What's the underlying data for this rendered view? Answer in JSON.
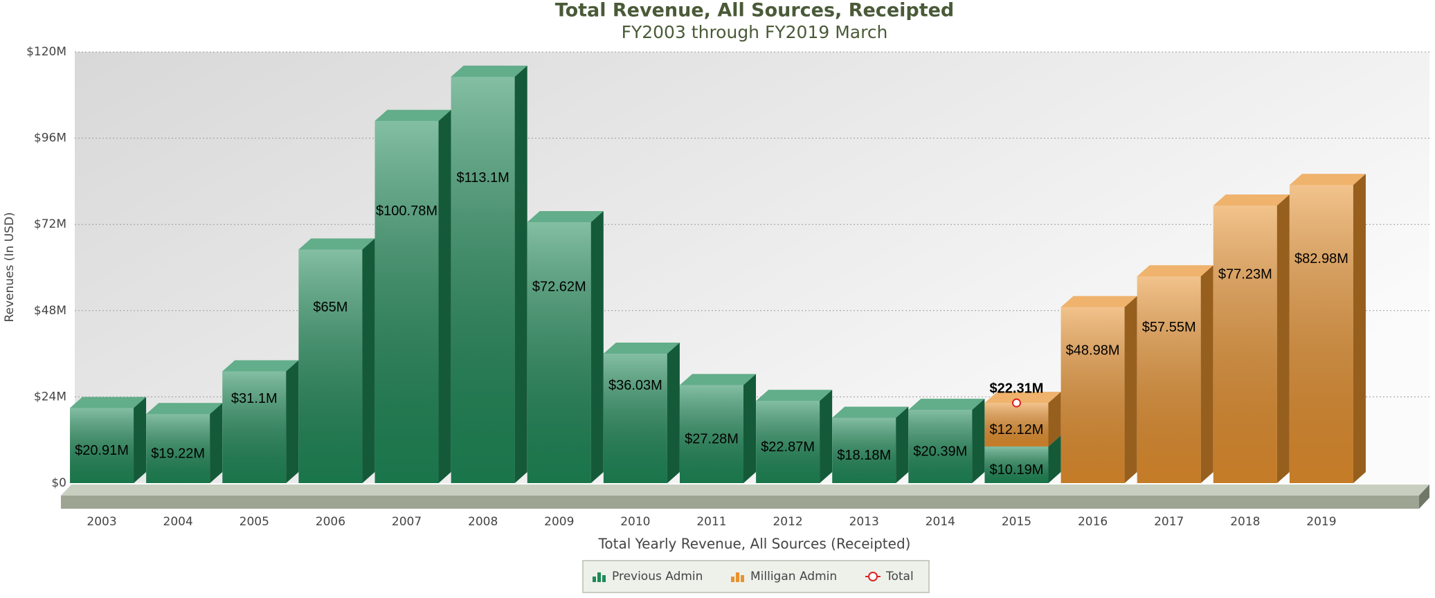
{
  "chart_data": {
    "type": "bar",
    "stacked": true,
    "title": "Total Revenue, All Sources, Receipted",
    "subtitle": "FY2003 through FY2019 March",
    "x_label": "Total Yearly Revenue, All Sources (Receipted)",
    "y_label": "Revenues (In USD)",
    "categories": [
      "2003",
      "2004",
      "2005",
      "2006",
      "2007",
      "2008",
      "2009",
      "2010",
      "2011",
      "2012",
      "2013",
      "2014",
      "2015",
      "2016",
      "2017",
      "2018",
      "2019"
    ],
    "series": [
      {
        "name": "Previous Admin",
        "color": "#1f8a58",
        "values": [
          20910000,
          19220000,
          31100000,
          65000000,
          100780000,
          113100000,
          72620000,
          36030000,
          27280000,
          22870000,
          18180000,
          20390000,
          10190000,
          null,
          null,
          null,
          null
        ],
        "value_labels": [
          "$20.91M",
          "$19.22M",
          "$31.1M",
          "$65M",
          "$100.78M",
          "$113.1M",
          "$72.62M",
          "$36.03M",
          "$27.28M",
          "$22.87M",
          "$18.18M",
          "$20.39M",
          "$10.19M",
          null,
          null,
          null,
          null
        ]
      },
      {
        "name": "Milligan Admin",
        "color": "#e8922f",
        "values": [
          null,
          null,
          null,
          null,
          null,
          null,
          null,
          null,
          null,
          null,
          null,
          null,
          12120000,
          48980000,
          57550000,
          77230000,
          82980000
        ],
        "value_labels": [
          null,
          null,
          null,
          null,
          null,
          null,
          null,
          null,
          null,
          null,
          null,
          null,
          "$12.12M",
          "$48.98M",
          "$57.55M",
          "$77.23M",
          "$82.98M"
        ]
      },
      {
        "name": "Total",
        "color": "#e02020",
        "type": "marker",
        "values": [
          null,
          null,
          null,
          null,
          null,
          null,
          null,
          null,
          null,
          null,
          null,
          null,
          22310000,
          null,
          null,
          null,
          null
        ],
        "value_labels": [
          null,
          null,
          null,
          null,
          null,
          null,
          null,
          null,
          null,
          null,
          null,
          null,
          "$22.31M",
          null,
          null,
          null,
          null
        ]
      }
    ],
    "ylim": [
      0,
      120000000
    ],
    "yticks": [
      {
        "value": 0,
        "label": "$0"
      },
      {
        "value": 24000000,
        "label": "$24M"
      },
      {
        "value": 48000000,
        "label": "$48M"
      },
      {
        "value": 72000000,
        "label": "$72M"
      },
      {
        "value": 96000000,
        "label": "$96M"
      },
      {
        "value": 120000000,
        "label": "$120M"
      }
    ],
    "grid": true,
    "legend": "bottom"
  }
}
